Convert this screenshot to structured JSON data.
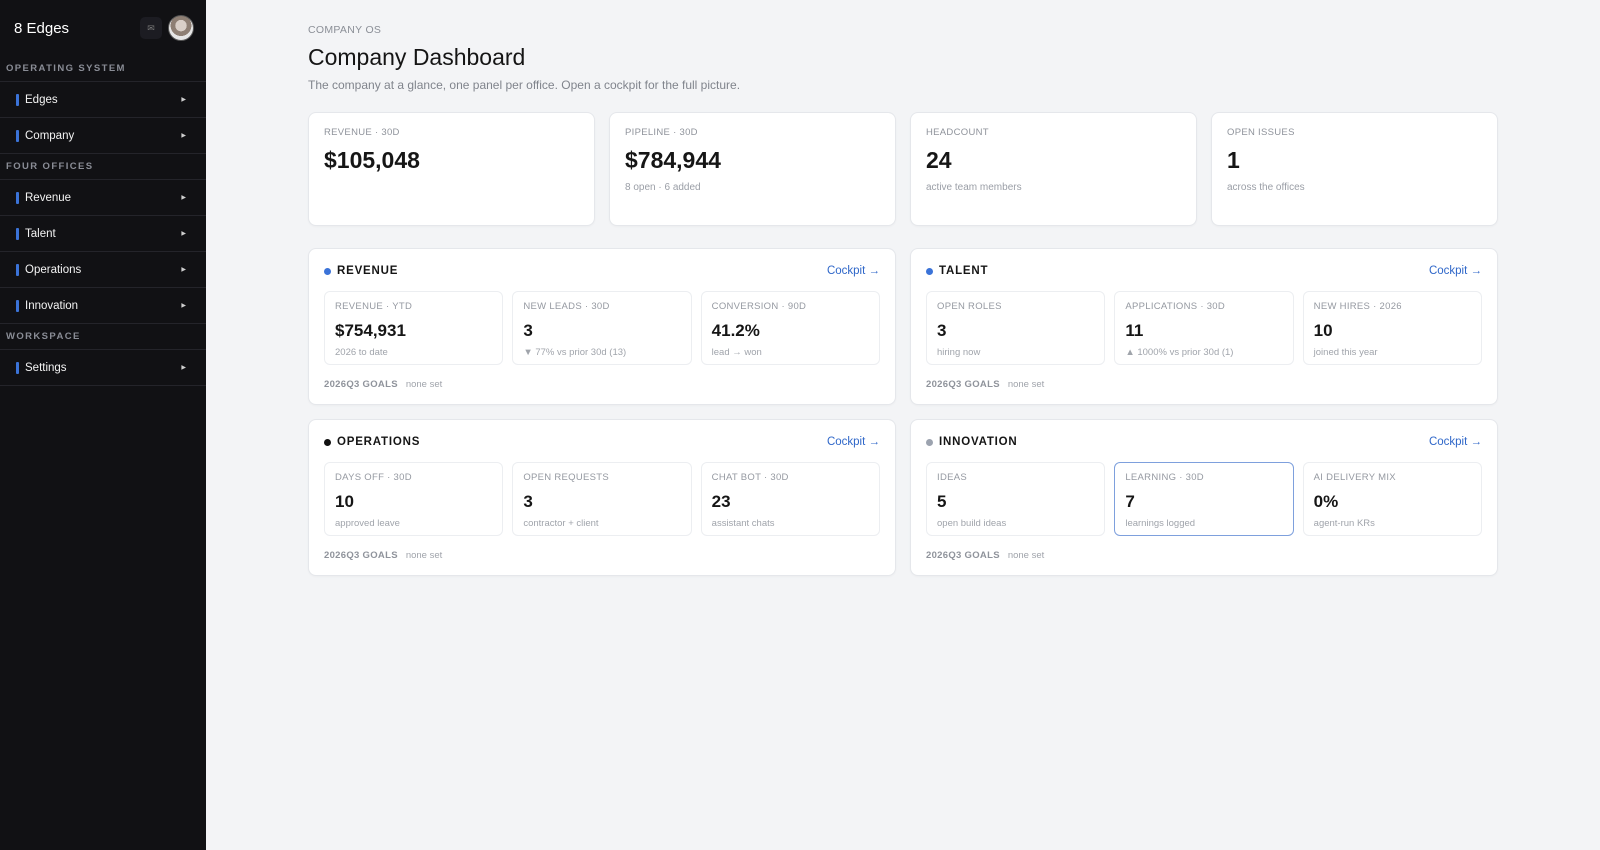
{
  "sidebar": {
    "brand": "8 Edges",
    "sections": [
      {
        "label": "OPERATING SYSTEM",
        "items": [
          {
            "label": "Edges"
          },
          {
            "label": "Company"
          }
        ]
      },
      {
        "label": "FOUR OFFICES",
        "items": [
          {
            "label": "Revenue"
          },
          {
            "label": "Talent"
          },
          {
            "label": "Operations"
          },
          {
            "label": "Innovation"
          }
        ]
      },
      {
        "label": "WORKSPACE",
        "items": [
          {
            "label": "Settings"
          }
        ]
      }
    ],
    "accent": "#3b73d8"
  },
  "page": {
    "eyebrow": "COMPANY OS",
    "title": "Company Dashboard",
    "subtitle": "The company at a glance, one panel per office. Open a cockpit for the full picture."
  },
  "kpis": [
    {
      "label": "REVENUE · 30D",
      "value": "$105,048",
      "note": ""
    },
    {
      "label": "PIPELINE · 30D",
      "value": "$784,944",
      "note": "8 open · 6 added"
    },
    {
      "label": "HEADCOUNT",
      "value": "24",
      "note": "active team members"
    },
    {
      "label": "OPEN ISSUES",
      "value": "1",
      "note": "across the offices"
    }
  ],
  "panels": [
    {
      "title": "REVENUE",
      "dot_color": "#3b73d8",
      "cockpit": "Cockpit →",
      "metrics": [
        {
          "label": "REVENUE · YTD",
          "value": "$754,931",
          "note": "2026 to date"
        },
        {
          "label": "NEW LEADS · 30D",
          "value": "3",
          "note": "▼ 77% vs prior 30d (13)"
        },
        {
          "label": "CONVERSION · 90D",
          "value": "41.2%",
          "note": "lead → won"
        }
      ],
      "goals_label": "2026Q3 GOALS",
      "goals_value": "none set"
    },
    {
      "title": "TALENT",
      "dot_color": "#3b73d8",
      "cockpit": "Cockpit →",
      "metrics": [
        {
          "label": "OPEN ROLES",
          "value": "3",
          "note": "hiring now"
        },
        {
          "label": "APPLICATIONS · 30D",
          "value": "11",
          "note": "▲ 1000% vs prior 30d (1)"
        },
        {
          "label": "NEW HIRES · 2026",
          "value": "10",
          "note": "joined this year"
        }
      ],
      "goals_label": "2026Q3 GOALS",
      "goals_value": "none set"
    },
    {
      "title": "OPERATIONS",
      "dot_color": "#111111",
      "cockpit": "Cockpit →",
      "metrics": [
        {
          "label": "DAYS OFF · 30D",
          "value": "10",
          "note": "approved leave"
        },
        {
          "label": "OPEN REQUESTS",
          "value": "3",
          "note": "contractor + client"
        },
        {
          "label": "CHAT BOT · 30D",
          "value": "23",
          "note": "assistant chats"
        }
      ],
      "goals_label": "2026Q3 GOALS",
      "goals_value": "none set"
    },
    {
      "title": "INNOVATION",
      "dot_color": "#9ca3af",
      "cockpit": "Cockpit →",
      "metrics": [
        {
          "label": "IDEAS",
          "value": "5",
          "note": "open build ideas"
        },
        {
          "label": "LEARNING · 30D",
          "value": "7",
          "note": "learnings logged"
        },
        {
          "label": "AI DELIVERY MIX",
          "value": "0%",
          "note": "agent-run KRs"
        }
      ],
      "goals_label": "2026Q3 GOALS",
      "goals_value": "none set"
    }
  ]
}
